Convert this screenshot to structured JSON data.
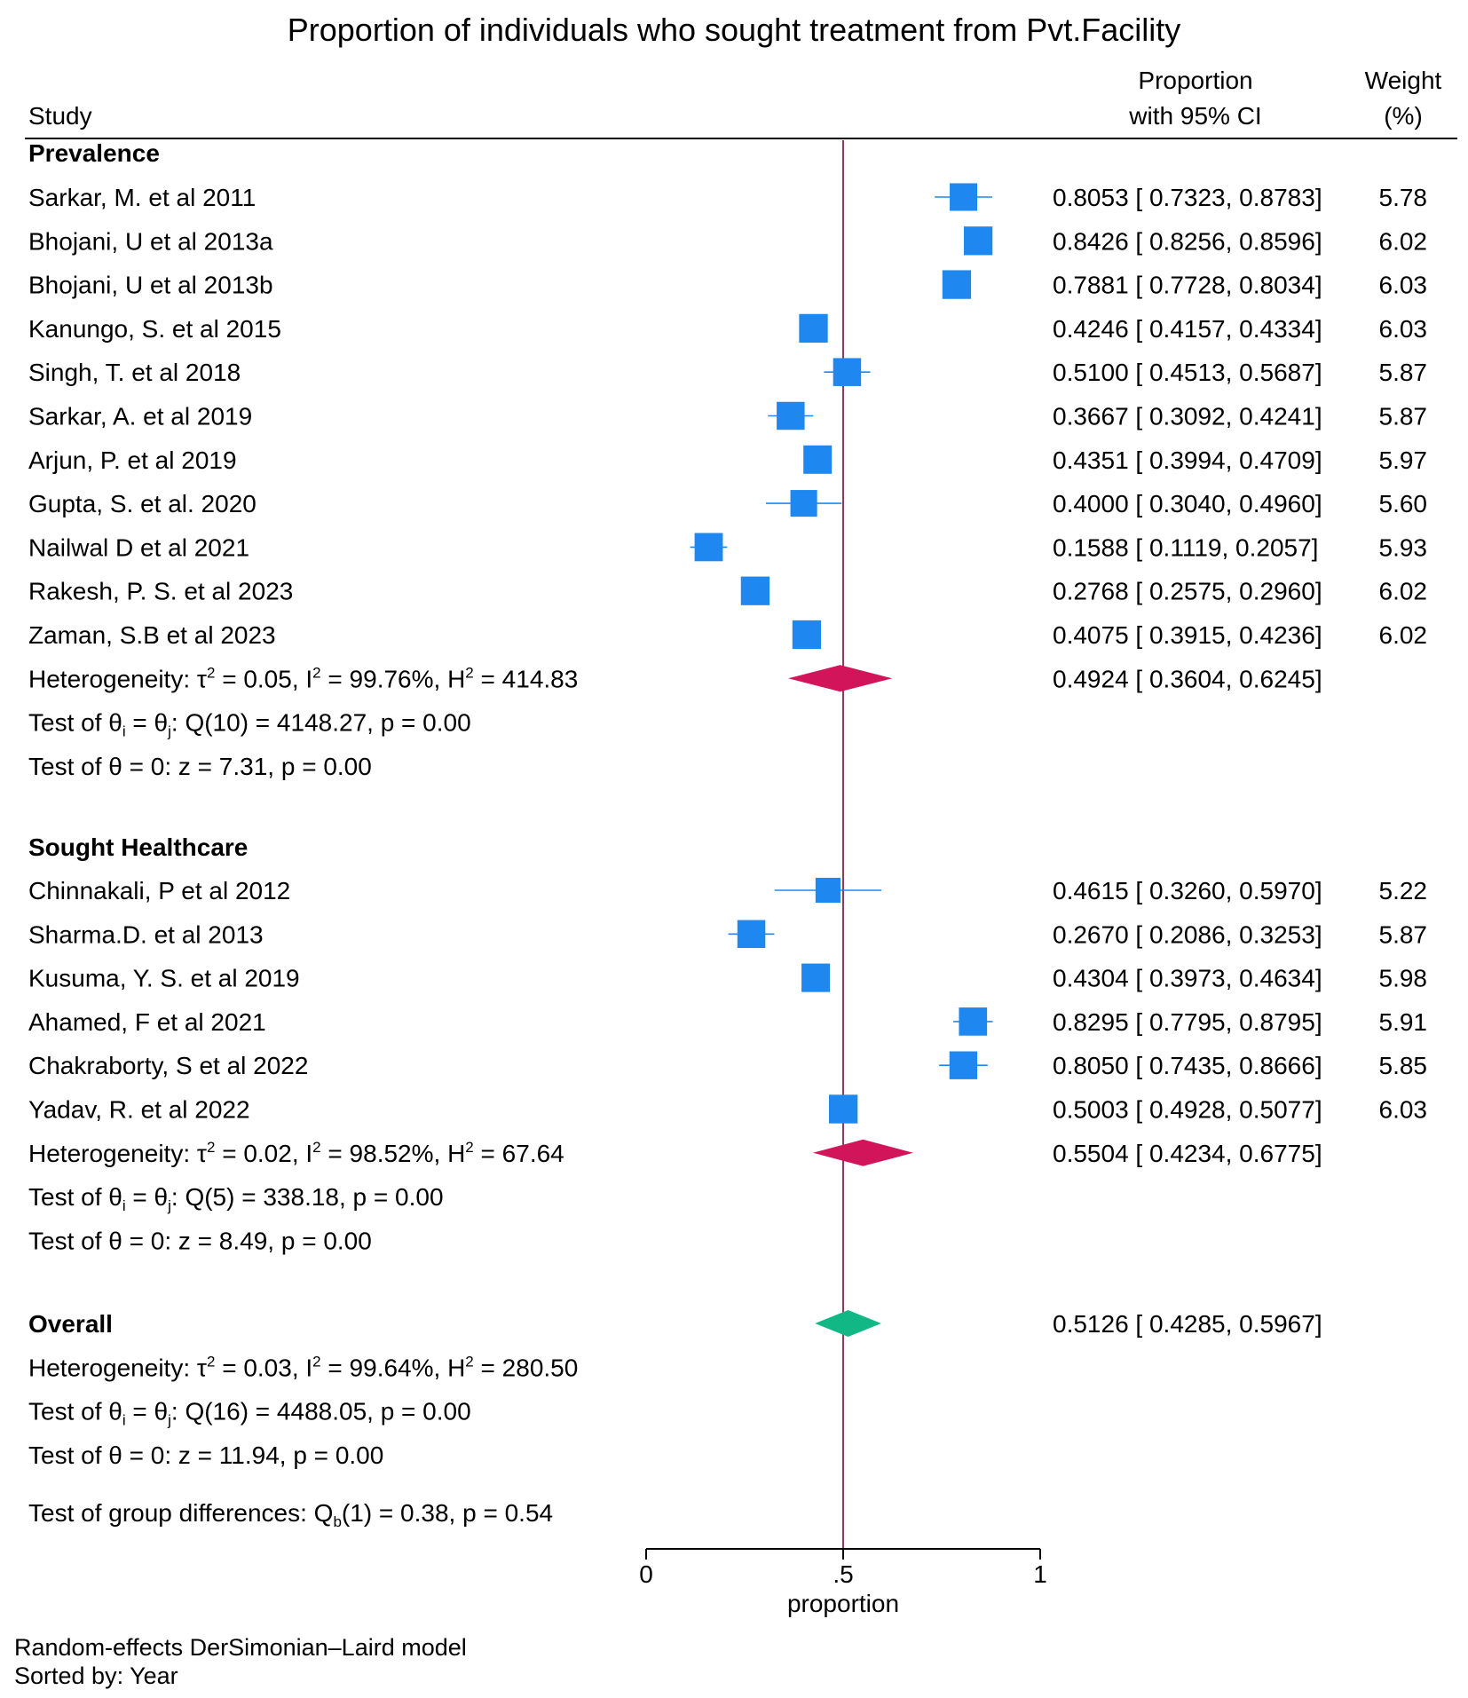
{
  "chart_data": {
    "type": "forest",
    "title": "Proportion of individuals who sought treatment from Pvt.Facility",
    "columns": {
      "study": "Study",
      "proportion_line1": "Proportion",
      "proportion_line2": "with 95% CI",
      "weight_line1": "Weight",
      "weight_line2": "(%)"
    },
    "xaxis": {
      "label": "proportion",
      "min": 0,
      "max": 1,
      "ticks": [
        0,
        0.5,
        1
      ],
      "tick_labels": [
        "0",
        ".5",
        "1"
      ],
      "reference_line": 0.5
    },
    "colors": {
      "study_marker": "#1e88f0",
      "subgroup_diamond": "#d2145a",
      "overall_diamond": "#11b886",
      "reference_line": "#8b3a62",
      "axis": "#000000"
    },
    "groups": [
      {
        "name": "Prevalence",
        "studies": [
          {
            "name": "Sarkar, M. et al 2011",
            "est": 0.8053,
            "lo": 0.7323,
            "hi": 0.8783,
            "weight": 5.78,
            "est_text": "0.8053",
            "lo_text": "0.7323",
            "hi_text": "0.8783",
            "weight_text": "5.78"
          },
          {
            "name": "Bhojani, U et al 2013a",
            "est": 0.8426,
            "lo": 0.8256,
            "hi": 0.8596,
            "weight": 6.02,
            "est_text": "0.8426",
            "lo_text": "0.8256",
            "hi_text": "0.8596",
            "weight_text": "6.02"
          },
          {
            "name": "Bhojani, U et al 2013b",
            "est": 0.7881,
            "lo": 0.7728,
            "hi": 0.8034,
            "weight": 6.03,
            "est_text": "0.7881",
            "lo_text": "0.7728",
            "hi_text": "0.8034",
            "weight_text": "6.03"
          },
          {
            "name": "Kanungo, S. et al 2015",
            "est": 0.4246,
            "lo": 0.4157,
            "hi": 0.4334,
            "weight": 6.03,
            "est_text": "0.4246",
            "lo_text": "0.4157",
            "hi_text": "0.4334",
            "weight_text": "6.03"
          },
          {
            "name": "Singh, T. et al 2018",
            "est": 0.51,
            "lo": 0.4513,
            "hi": 0.5687,
            "weight": 5.87,
            "est_text": "0.5100",
            "lo_text": "0.4513",
            "hi_text": "0.5687",
            "weight_text": "5.87"
          },
          {
            "name": "Sarkar, A. et al 2019",
            "est": 0.3667,
            "lo": 0.3092,
            "hi": 0.4241,
            "weight": 5.87,
            "est_text": "0.3667",
            "lo_text": "0.3092",
            "hi_text": "0.4241",
            "weight_text": "5.87"
          },
          {
            "name": "Arjun, P. et al 2019",
            "est": 0.4351,
            "lo": 0.3994,
            "hi": 0.4709,
            "weight": 5.97,
            "est_text": "0.4351",
            "lo_text": "0.3994",
            "hi_text": "0.4709",
            "weight_text": "5.97"
          },
          {
            "name": "Gupta, S. et al. 2020",
            "est": 0.4,
            "lo": 0.304,
            "hi": 0.496,
            "weight": 5.6,
            "est_text": "0.4000",
            "lo_text": "0.3040",
            "hi_text": "0.4960",
            "weight_text": "5.60"
          },
          {
            "name": "Nailwal D et al 2021",
            "est": 0.1588,
            "lo": 0.1119,
            "hi": 0.2057,
            "weight": 5.93,
            "est_text": "0.1588",
            "lo_text": "0.1119",
            "hi_text": "0.2057",
            "weight_text": "5.93"
          },
          {
            "name": "Rakesh, P. S. et al 2023",
            "est": 0.2768,
            "lo": 0.2575,
            "hi": 0.296,
            "weight": 6.02,
            "est_text": "0.2768",
            "lo_text": "0.2575",
            "hi_text": "0.2960",
            "weight_text": "6.02"
          },
          {
            "name": "Zaman, S.B et al 2023",
            "est": 0.4075,
            "lo": 0.3915,
            "hi": 0.4236,
            "weight": 6.02,
            "est_text": "0.4075",
            "lo_text": "0.3915",
            "hi_text": "0.4236",
            "weight_text": "6.02"
          }
        ],
        "pooled": {
          "est": 0.4924,
          "lo": 0.3604,
          "hi": 0.6245,
          "est_text": "0.4924",
          "lo_text": "0.3604",
          "hi_text": "0.6245"
        },
        "heterogeneity": {
          "tau2": "0.05",
          "i2": "99.76%",
          "h2": "414.83"
        },
        "q_test": {
          "df": "10",
          "q": "4148.27",
          "p": "0.00"
        },
        "z_test": {
          "z": "7.31",
          "p": "0.00"
        }
      },
      {
        "name": "Sought Healthcare",
        "studies": [
          {
            "name": "Chinnakali, P et al 2012",
            "est": 0.4615,
            "lo": 0.326,
            "hi": 0.597,
            "weight": 5.22,
            "est_text": "0.4615",
            "lo_text": "0.3260",
            "hi_text": "0.5970",
            "weight_text": "5.22"
          },
          {
            "name": "Sharma.D. et al 2013",
            "est": 0.267,
            "lo": 0.2086,
            "hi": 0.3253,
            "weight": 5.87,
            "est_text": "0.2670",
            "lo_text": "0.2086",
            "hi_text": "0.3253",
            "weight_text": "5.87"
          },
          {
            "name": "Kusuma, Y. S. et al 2019",
            "est": 0.4304,
            "lo": 0.3973,
            "hi": 0.4634,
            "weight": 5.98,
            "est_text": "0.4304",
            "lo_text": "0.3973",
            "hi_text": "0.4634",
            "weight_text": "5.98"
          },
          {
            "name": "Ahamed, F et al 2021",
            "est": 0.8295,
            "lo": 0.7795,
            "hi": 0.8795,
            "weight": 5.91,
            "est_text": "0.8295",
            "lo_text": "0.7795",
            "hi_text": "0.8795",
            "weight_text": "5.91"
          },
          {
            "name": "Chakraborty, S et al 2022",
            "est": 0.805,
            "lo": 0.7435,
            "hi": 0.8666,
            "weight": 5.85,
            "est_text": "0.8050",
            "lo_text": "0.7435",
            "hi_text": "0.8666",
            "weight_text": "5.85"
          },
          {
            "name": "Yadav, R. et al 2022",
            "est": 0.5003,
            "lo": 0.4928,
            "hi": 0.5077,
            "weight": 6.03,
            "est_text": "0.5003",
            "lo_text": "0.4928",
            "hi_text": "0.5077",
            "weight_text": "6.03"
          }
        ],
        "pooled": {
          "est": 0.5504,
          "lo": 0.4234,
          "hi": 0.6775,
          "est_text": "0.5504",
          "lo_text": "0.4234",
          "hi_text": "0.6775"
        },
        "heterogeneity": {
          "tau2": "0.02",
          "i2": "98.52%",
          "h2": "67.64"
        },
        "q_test": {
          "df": "5",
          "q": "338.18",
          "p": "0.00"
        },
        "z_test": {
          "z": "8.49",
          "p": "0.00"
        }
      }
    ],
    "overall": {
      "label": "Overall",
      "est": 0.5126,
      "lo": 0.4285,
      "hi": 0.5967,
      "est_text": "0.5126",
      "lo_text": "0.4285",
      "hi_text": "0.5967",
      "heterogeneity": {
        "tau2": "0.03",
        "i2": "99.64%",
        "h2": "280.50"
      },
      "q_test": {
        "df": "16",
        "q": "4488.05",
        "p": "0.00"
      },
      "z_test": {
        "z": "11.94",
        "p": "0.00"
      }
    },
    "group_difference": {
      "qb_df": "1",
      "qb": "0.38",
      "p": "0.54"
    },
    "footnotes": [
      "Random-effects DerSimonian–Laird model",
      "Sorted by: Year"
    ]
  }
}
